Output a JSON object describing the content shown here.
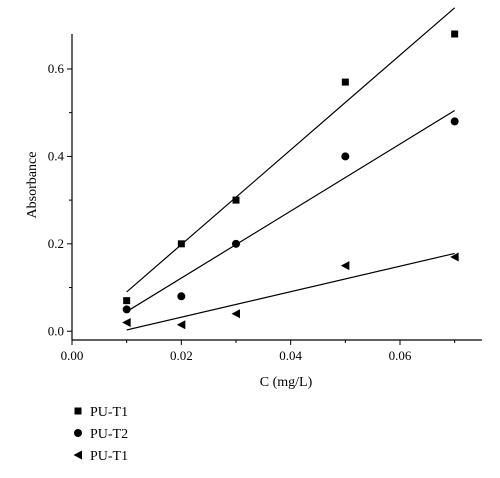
{
  "chart_data": {
    "type": "scatter",
    "title": "",
    "xlabel": "C (mg/L)",
    "ylabel": "Absorbance",
    "xlim": [
      0.0,
      0.075
    ],
    "ylim": [
      -0.02,
      0.68
    ],
    "x_ticks": [
      0.0,
      0.02,
      0.04,
      0.06
    ],
    "x_tick_labels": [
      "0.00",
      "0.02",
      "0.04",
      "0.06"
    ],
    "y_ticks": [
      0.0,
      0.2,
      0.4,
      0.6
    ],
    "y_tick_labels": [
      "0.0",
      "0.2",
      "0.4",
      "0.6"
    ],
    "grid": false,
    "legend_position": "below-left",
    "series": [
      {
        "name": "PU-T1",
        "marker": "square",
        "x": [
          0.01,
          0.02,
          0.03,
          0.05,
          0.07
        ],
        "y": [
          0.07,
          0.2,
          0.3,
          0.57,
          0.68
        ],
        "fit": {
          "x": [
            0.01,
            0.07
          ],
          "y": [
            0.09,
            0.74
          ]
        }
      },
      {
        "name": "PU-T2",
        "marker": "circle",
        "x": [
          0.01,
          0.02,
          0.03,
          0.05,
          0.07
        ],
        "y": [
          0.05,
          0.08,
          0.2,
          0.4,
          0.48
        ],
        "fit": {
          "x": [
            0.01,
            0.07
          ],
          "y": [
            0.045,
            0.505
          ]
        }
      },
      {
        "name": "PU-T1",
        "marker": "triangle-left",
        "x": [
          0.01,
          0.02,
          0.03,
          0.05,
          0.07
        ],
        "y": [
          0.02,
          0.015,
          0.04,
          0.15,
          0.17
        ],
        "fit": {
          "x": [
            0.01,
            0.07
          ],
          "y": [
            0.003,
            0.178
          ]
        }
      }
    ]
  }
}
